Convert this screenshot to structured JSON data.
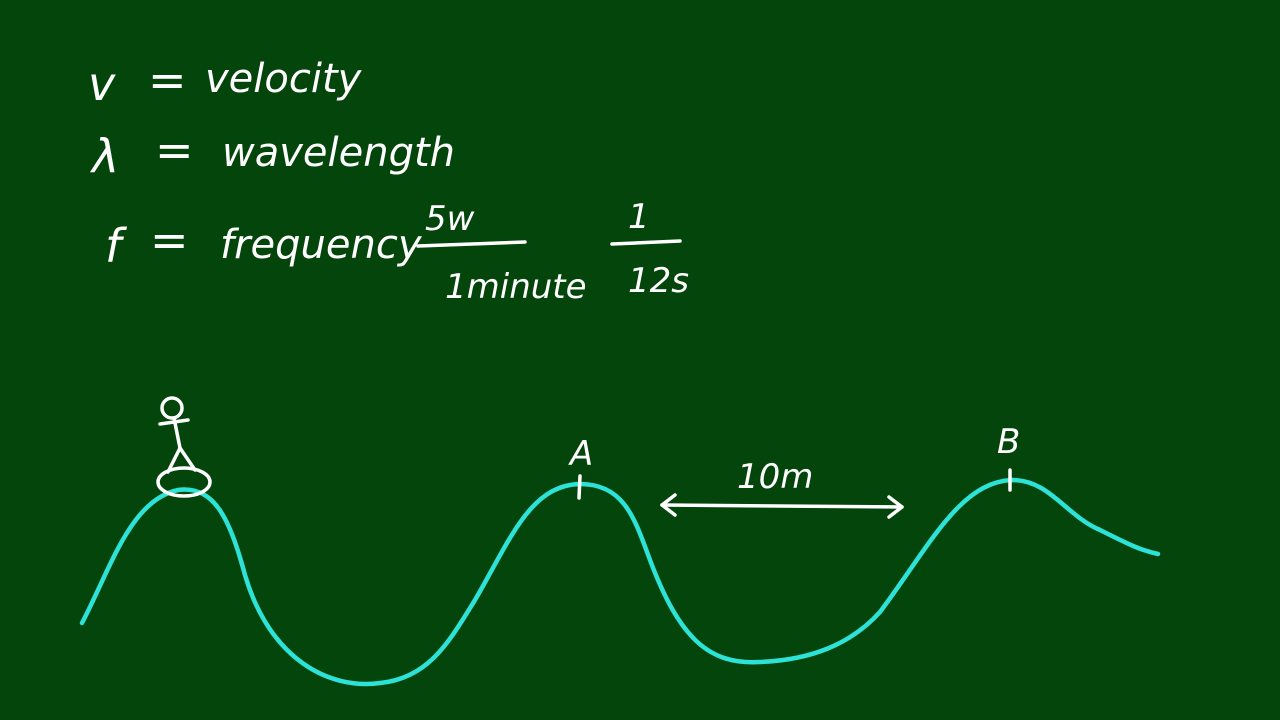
{
  "definitions": [
    {
      "symbol": "v",
      "equals": "=",
      "term": "velocity"
    },
    {
      "symbol": "λ",
      "equals": "=",
      "term": "wavelength"
    },
    {
      "symbol": "f",
      "equals": "=",
      "term": "frequency"
    }
  ],
  "fraction_1": {
    "numerator": "5w",
    "denominator": "1minute"
  },
  "fraction_2": {
    "numerator": "1",
    "denominator": "12s"
  },
  "labels": {
    "point_a": "A",
    "point_b": "B",
    "distance": "10m"
  },
  "colors": {
    "board": "#03450a",
    "chalk": "#ffffff",
    "wave": "#2de3d8"
  },
  "icons": {
    "person": "stick-figure-on-boat-icon",
    "arrow": "double-headed-arrow-icon"
  }
}
